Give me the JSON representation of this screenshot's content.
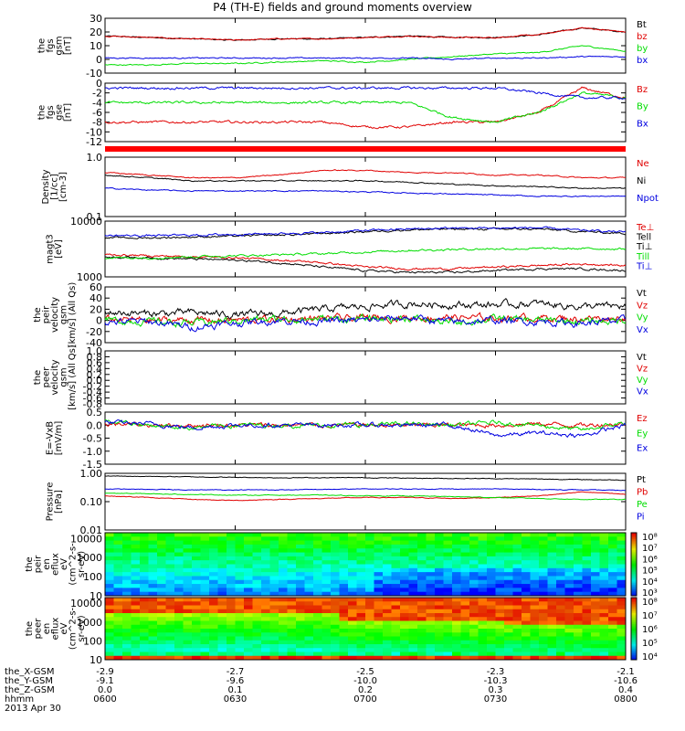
{
  "chart_data": {
    "type": "line",
    "title": "P4 (TH-E) fields and ground moments overview",
    "date_label": "2013 Apr 30",
    "colors": {
      "black": "#000000",
      "red": "#e00000",
      "green": "#00dd00",
      "blue": "#0000e0"
    },
    "panels": [
      {
        "id": "fgs-gsm",
        "kind": "line",
        "ylabel": [
          "the",
          "fgs",
          "gsm",
          "[nT]"
        ],
        "scale": "linear",
        "ylim": [
          -10,
          30
        ],
        "ticks": [
          "30",
          "20",
          "10",
          "0",
          "-10"
        ],
        "series": [
          {
            "name": "Bt",
            "color": "black",
            "values": [
              17,
              16,
              15,
              14,
              15,
              15,
              16,
              17,
              16,
              16,
              18,
              23,
              20
            ]
          },
          {
            "name": "bz",
            "color": "red",
            "values": [
              17,
              16,
              15,
              14,
              15,
              15,
              16,
              17,
              16,
              16,
              18,
              23,
              20
            ]
          },
          {
            "name": "by",
            "color": "green",
            "values": [
              -4,
              -4,
              -3,
              -3,
              -2,
              -1,
              -2,
              0,
              2,
              4,
              5,
              10,
              6
            ]
          },
          {
            "name": "bx",
            "color": "blue",
            "values": [
              1,
              1,
              1,
              1,
              1,
              1,
              1,
              1,
              0,
              1,
              1,
              2,
              2
            ]
          }
        ]
      },
      {
        "id": "fgs-gse",
        "kind": "line",
        "ylabel": [
          "the",
          "fgs",
          "gse",
          "[nT]"
        ],
        "scale": "linear",
        "ylim": [
          -12,
          0
        ],
        "ticks": [
          "0",
          "-2",
          "-4",
          "-6",
          "-8",
          "-10",
          "-12"
        ],
        "series": [
          {
            "name": "Bz",
            "color": "red",
            "values": [
              -8,
              -8,
              -8,
              -8,
              -8,
              -8,
              -9,
              -9,
              -8,
              -8,
              -6,
              -1,
              -3
            ]
          },
          {
            "name": "By",
            "color": "green",
            "values": [
              -4,
              -4,
              -4,
              -4,
              -4,
              -4,
              -4,
              -4,
              -7,
              -8,
              -6,
              -2,
              -3
            ]
          },
          {
            "name": "Bx",
            "color": "blue",
            "values": [
              -1,
              -1,
              -1,
              -1,
              -1,
              -1,
              -1,
              -1,
              -1,
              -1,
              -2,
              -3,
              -3
            ]
          }
        ]
      },
      {
        "id": "moments-density",
        "kind": "line",
        "ylabel": [
          "Density",
          "[1/cc]",
          "[cm-3]"
        ],
        "scale": "log",
        "ylim": [
          0.1,
          1.0
        ],
        "ticks": [
          "1.0",
          "0.1"
        ],
        "series": [
          {
            "name": "Ne",
            "color": "red",
            "values": [
              0.55,
              0.5,
              0.45,
              0.45,
              0.5,
              0.6,
              0.6,
              0.55,
              0.55,
              0.5,
              0.5,
              0.45,
              0.45
            ]
          },
          {
            "name": "Ni",
            "color": "black",
            "values": [
              0.5,
              0.45,
              0.4,
              0.4,
              0.4,
              0.4,
              0.4,
              0.38,
              0.35,
              0.33,
              0.32,
              0.3,
              0.3
            ]
          },
          {
            "name": "Npot",
            "color": "blue",
            "values": [
              0.3,
              0.28,
              0.27,
              0.27,
              0.27,
              0.27,
              0.26,
              0.25,
              0.24,
              0.23,
              0.22,
              0.22,
              0.22
            ]
          }
        ]
      },
      {
        "id": "moments-temp",
        "kind": "line",
        "ylabel": [
          "magt3",
          "[eV]"
        ],
        "scale": "log",
        "ylim": [
          1000,
          10000
        ],
        "ticks": [
          "10000",
          "1000"
        ],
        "series": [
          {
            "name": "Te⊥",
            "color": "red",
            "values": [
              2500,
              2400,
              2300,
              2200,
              2000,
              1800,
              1500,
              1400,
              1400,
              1500,
              1600,
              1700,
              1600
            ]
          },
          {
            "name": "Tell",
            "color": "black",
            "values": [
              2300,
              2200,
              2100,
              2000,
              1800,
              1500,
              1300,
              1200,
              1200,
              1300,
              1400,
              1400,
              1300
            ]
          },
          {
            "name": "Ti⊥",
            "color": "black",
            "values": [
              5000,
              5000,
              5200,
              5400,
              5600,
              6000,
              6500,
              7000,
              7200,
              7200,
              7200,
              6500,
              6000
            ]
          },
          {
            "name": "Till",
            "color": "green",
            "values": [
              2200,
              2200,
              2300,
              2400,
              2500,
              2600,
              2800,
              3000,
              3100,
              3200,
              3200,
              3200,
              3200
            ]
          },
          {
            "name": "Ti⊥",
            "color": "blue",
            "values": [
              5500,
              5500,
              5600,
              5800,
              6000,
              6200,
              6800,
              7200,
              7500,
              7500,
              7600,
              6800,
              6400
            ]
          }
        ]
      },
      {
        "id": "peir-velocity",
        "kind": "line",
        "ylabel": [
          "the",
          "peir",
          "velocity",
          "gsm",
          "[km/s] (All Qs)"
        ],
        "scale": "linear",
        "ylim": [
          -40,
          60
        ],
        "ticks": [
          "60",
          "40",
          "20",
          "0",
          "-20",
          "-40"
        ],
        "series": [
          {
            "name": "Vt",
            "color": "black",
            "values": [
              15,
              12,
              14,
              10,
              12,
              20,
              25,
              30,
              28,
              28,
              30,
              25,
              25
            ]
          },
          {
            "name": "Vz",
            "color": "red",
            "values": [
              2,
              0,
              1,
              0,
              2,
              3,
              4,
              5,
              5,
              4,
              5,
              3,
              5
            ]
          },
          {
            "name": "Vy",
            "color": "green",
            "values": [
              0,
              -2,
              -5,
              0,
              2,
              3,
              2,
              4,
              -5,
              3,
              0,
              -2,
              0
            ]
          },
          {
            "name": "Vx",
            "color": "blue",
            "values": [
              -3,
              -2,
              -12,
              -5,
              0,
              -2,
              0,
              5,
              -3,
              0,
              -2,
              -5,
              0
            ]
          }
        ]
      },
      {
        "id": "peer-velocity",
        "kind": "empty",
        "ylabel": [
          "the",
          "peer",
          "velocity",
          "gsm",
          "[km/s] (All Qs)"
        ],
        "scale": "linear",
        "ylim": [
          -0.8,
          1.0
        ],
        "ticks": [
          "1.0",
          "0.8",
          "0.6",
          "0.4",
          "0.2",
          "0.0",
          "-0.2",
          "-0.4",
          "-0.6",
          "-0.8"
        ],
        "series": [
          {
            "name": "Vt",
            "color": "black",
            "values": []
          },
          {
            "name": "Vz",
            "color": "red",
            "values": []
          },
          {
            "name": "Vy",
            "color": "green",
            "values": []
          },
          {
            "name": "Vx",
            "color": "blue",
            "values": []
          }
        ]
      },
      {
        "id": "efield",
        "kind": "line",
        "ylabel": [
          "E=-VxB",
          "[mV/m]"
        ],
        "scale": "linear",
        "ylim": [
          -1.5,
          0.5
        ],
        "ticks": [
          "0.5",
          "0.0",
          "-0.5",
          "-1.0",
          "-1.5"
        ],
        "series": [
          {
            "name": "Ez",
            "color": "red",
            "values": [
              0.05,
              0.0,
              0.0,
              0.0,
              0.0,
              0.0,
              0.0,
              0.0,
              0.0,
              0.0,
              0.05,
              0.0,
              0.05
            ]
          },
          {
            "name": "Ey",
            "color": "green",
            "values": [
              0.2,
              0.0,
              -0.1,
              0.0,
              0.0,
              0.0,
              0.0,
              0.05,
              0.0,
              0.1,
              0.0,
              -0.2,
              0.1
            ]
          },
          {
            "name": "Ex",
            "color": "blue",
            "values": [
              0.1,
              0.05,
              -0.1,
              0.0,
              0.0,
              0.0,
              0.0,
              0.0,
              0.0,
              -0.4,
              -0.3,
              -0.4,
              0.0
            ]
          }
        ]
      },
      {
        "id": "pressure",
        "kind": "line",
        "ylabel": [
          "Pressure",
          "[nPa]"
        ],
        "scale": "log",
        "ylim": [
          0.01,
          1.0
        ],
        "ticks": [
          "1.00",
          "0.10",
          "0.01"
        ],
        "series": [
          {
            "name": "Pt",
            "color": "black",
            "values": [
              0.8,
              0.78,
              0.75,
              0.72,
              0.7,
              0.7,
              0.7,
              0.68,
              0.66,
              0.65,
              0.63,
              0.6,
              0.58
            ]
          },
          {
            "name": "Pb",
            "color": "red",
            "values": [
              0.16,
              0.14,
              0.12,
              0.11,
              0.12,
              0.13,
              0.14,
              0.14,
              0.13,
              0.14,
              0.16,
              0.22,
              0.18
            ]
          },
          {
            "name": "Pe",
            "color": "green",
            "values": [
              0.2,
              0.19,
              0.18,
              0.17,
              0.17,
              0.17,
              0.16,
              0.16,
              0.15,
              0.14,
              0.13,
              0.12,
              0.12
            ]
          },
          {
            "name": "Pi",
            "color": "blue",
            "values": [
              0.28,
              0.27,
              0.26,
              0.26,
              0.26,
              0.27,
              0.28,
              0.28,
              0.28,
              0.28,
              0.27,
              0.26,
              0.25
            ]
          }
        ]
      },
      {
        "id": "peir-spectrogram",
        "kind": "spectrogram",
        "ylabel": [
          "the",
          "peir",
          "en",
          "eflux",
          "eV",
          "(cm^2-s-",
          "sr-eV)"
        ],
        "scale": "log",
        "ylim": [
          10,
          20000
        ],
        "ticks": [
          "10000",
          "1000",
          "100",
          "10"
        ],
        "colorbar": [
          "10⁸",
          "10⁷",
          "10⁶",
          "10⁵",
          "10⁴",
          "10³"
        ]
      },
      {
        "id": "peer-spectrogram",
        "kind": "spectrogram",
        "ylabel": [
          "the",
          "peer",
          "en",
          "eflux",
          "eV",
          "(cm^2-s-",
          "sr-eV)"
        ],
        "scale": "log",
        "ylim": [
          10,
          20000
        ],
        "ticks": [
          "10000",
          "1000",
          "100",
          "10"
        ],
        "colorbar": [
          "10⁸",
          "10⁷",
          "10⁶",
          "10⁵",
          "10⁴"
        ]
      }
    ],
    "x_axis": {
      "labels": [
        "the_X-GSM",
        "the_Y-GSM",
        "the_Z-GSM",
        "hhmm"
      ],
      "columns": [
        [
          "-2.9",
          "-9.1",
          "0.0",
          "0600"
        ],
        [
          "-2.7",
          "-9.6",
          "0.1",
          "0630"
        ],
        [
          "-2.5",
          "-10.0",
          "0.2",
          "0700"
        ],
        [
          "-2.3",
          "-10.3",
          "0.3",
          "0730"
        ],
        [
          "-2.1",
          "-10.6",
          "0.4",
          "0800"
        ]
      ]
    }
  }
}
